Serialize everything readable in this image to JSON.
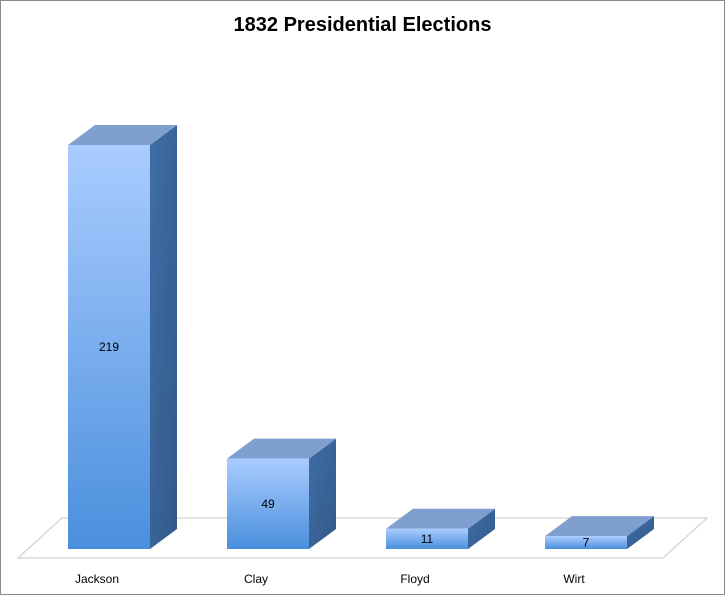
{
  "chart_data": {
    "type": "bar",
    "title": "1832 Presidential Elections",
    "xlabel": "",
    "ylabel": "",
    "categories": [
      "Jackson",
      "Clay",
      "Floyd",
      "Wirt"
    ],
    "values": [
      219,
      49,
      11,
      7
    ],
    "data_labels": [
      "219",
      "49",
      "11",
      "7"
    ],
    "ylim": [
      0,
      219
    ],
    "grid": false,
    "legend": "none",
    "style": "3d-column",
    "colors": {
      "bar_top": "#aaccff",
      "bar_bottom": "#4a8fdd",
      "bar_side": "#3f6ea6",
      "bar_cap": "#7f9fcf",
      "floor_fill": "#ffffff",
      "floor_stroke": "#c8c8c8"
    }
  }
}
